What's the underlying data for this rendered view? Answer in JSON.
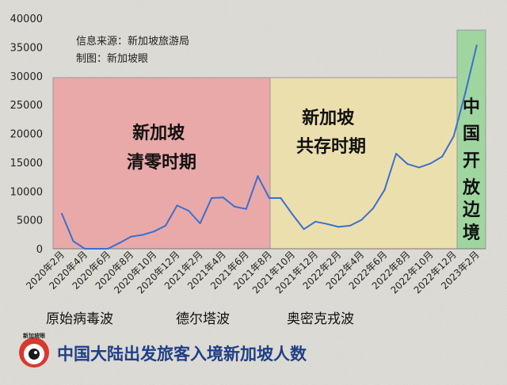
{
  "chart_data": {
    "type": "line",
    "title": "中国大陆出发旅客入境新加坡人数",
    "xlabel": "",
    "ylabel": "",
    "ylim": [
      0,
      40000
    ],
    "yticks": [
      0,
      5000,
      10000,
      15000,
      20000,
      25000,
      30000,
      35000,
      40000
    ],
    "grid": false,
    "line_color": "#3b6fcf",
    "tick_labels": [
      "2020年2月",
      "2020年4月",
      "2020年6月",
      "2020年8月",
      "2020年10月",
      "2020年12月",
      "2021年2月",
      "2021年4月",
      "2021年6月",
      "2021年8月",
      "2021年10月",
      "2021年12月",
      "2022年2月",
      "2022年4月",
      "2022年6月",
      "2022年8月",
      "2022年10月",
      "2022年12月",
      "2023年2月"
    ],
    "x": [
      "2020年2月",
      "2020年3月",
      "2020年4月",
      "2020年5月",
      "2020年6月",
      "2020年7月",
      "2020年8月",
      "2020年9月",
      "2020年10月",
      "2020年11月",
      "2020年12月",
      "2021年1月",
      "2021年2月",
      "2021年3月",
      "2021年4月",
      "2021年5月",
      "2021年6月",
      "2021年7月",
      "2021年8月",
      "2021年9月",
      "2021年10月",
      "2021年11月",
      "2021年12月",
      "2022年1月",
      "2022年2月",
      "2022年3月",
      "2022年4月",
      "2022年5月",
      "2022年6月",
      "2022年7月",
      "2022年8月",
      "2022年9月",
      "2022年10月",
      "2022年11月",
      "2022年12月",
      "2023年1月",
      "2023年2月"
    ],
    "values": [
      6100,
      1300,
      0,
      0,
      0,
      1000,
      2100,
      2400,
      3000,
      4000,
      7500,
      6600,
      4400,
      8800,
      8900,
      7300,
      6900,
      12600,
      8800,
      8800,
      6000,
      3400,
      4700,
      4300,
      3800,
      4000,
      5000,
      7000,
      10200,
      16500,
      14700,
      14100,
      14800,
      16000,
      19500,
      27000,
      35300
    ],
    "annotations": [
      {
        "text": "新加坡\n清零时期",
        "color": "#e9a9a9",
        "x_start": "2020年2月",
        "x_end": "2021年9月"
      },
      {
        "text": "新加坡\n共存时期",
        "color": "#ecdfae",
        "x_start": "2021年9月",
        "x_end": "2022年12月"
      },
      {
        "text": "中\n国\n开\n放\n边\n境",
        "color": "#9fd6a0",
        "x_start": "2022年12月",
        "x_end": "2023年2月"
      }
    ]
  },
  "source_lines": [
    "信息来源：新加坡旅游局",
    "制图：新加坡眼"
  ],
  "waves": [
    "原始病毒波",
    "德尔塔波",
    "奥密克戎波"
  ],
  "logo_label": "新加坡眼",
  "zones": {
    "zero_covid": [
      "新加坡",
      "清零时期"
    ],
    "coexist": [
      "新加坡",
      "共存时期"
    ],
    "china_open": [
      "中",
      "国",
      "开",
      "放",
      "边",
      "境"
    ]
  }
}
